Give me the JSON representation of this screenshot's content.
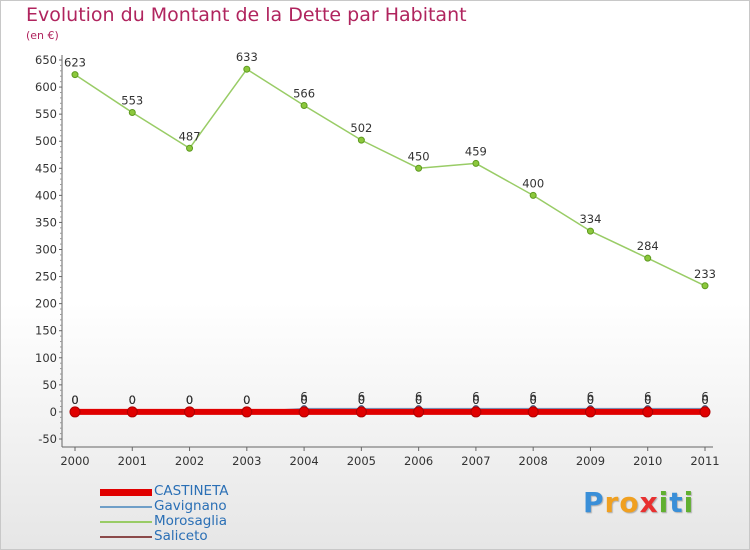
{
  "title": "Evolution du Montant de la Dette par Habitant",
  "subtitle": "(en €)",
  "logo": {
    "text": "Proxiti",
    "letters": [
      "P",
      "r",
      "o",
      "x",
      "i",
      "t",
      "i"
    ],
    "colors": [
      "#3a8fd8",
      "#f0a020",
      "#f0a020",
      "#e83030",
      "#60b030",
      "#3a8fd8",
      "#60b030"
    ]
  },
  "chart_data": {
    "type": "line",
    "title": "Evolution du Montant de la Dette par Habitant",
    "subtitle": "(en €)",
    "categories": [
      "2000",
      "2001",
      "2002",
      "2003",
      "2004",
      "2005",
      "2006",
      "2007",
      "2008",
      "2009",
      "2010",
      "2011"
    ],
    "ylim": [
      -50,
      650
    ],
    "yticks": [
      -50,
      0,
      50,
      100,
      150,
      200,
      250,
      300,
      350,
      400,
      450,
      500,
      550,
      600,
      650
    ],
    "grid": false,
    "legend_position": "bottom-left",
    "series": [
      {
        "name": "CASTINETA",
        "color": "#e00000",
        "values": [
          0,
          0,
          0,
          0,
          0,
          0,
          0,
          0,
          0,
          0,
          0,
          0
        ],
        "labels": [
          "0",
          "0",
          "0",
          "0",
          "0",
          "0",
          "0",
          "0",
          "0",
          "0",
          "0",
          "0"
        ]
      },
      {
        "name": "Gavignano",
        "color": "#6f9fc8",
        "values": [
          0,
          0,
          0,
          0,
          6,
          6,
          6,
          6,
          6,
          6,
          6,
          6
        ],
        "labels": [
          "0",
          "0",
          "0",
          "0",
          "6",
          "6",
          "6",
          "6",
          "6",
          "6",
          "6",
          "6"
        ]
      },
      {
        "name": "Morosaglia",
        "color": "#99cc66",
        "values": [
          623,
          553,
          487,
          633,
          566,
          502,
          450,
          459,
          400,
          334,
          284,
          233
        ],
        "labels": [
          "623",
          "553",
          "487",
          "633",
          "566",
          "502",
          "450",
          "459",
          "400",
          "334",
          "284",
          "233"
        ]
      },
      {
        "name": "Saliceto",
        "color": "#8b4a4a",
        "values": [
          0,
          0,
          0,
          0,
          0,
          0,
          0,
          0,
          0,
          0,
          0,
          0
        ],
        "labels": [
          "0",
          "0",
          "0",
          "0",
          "0",
          "0",
          "0",
          "0",
          "0",
          "0",
          "0",
          "0"
        ]
      }
    ]
  }
}
